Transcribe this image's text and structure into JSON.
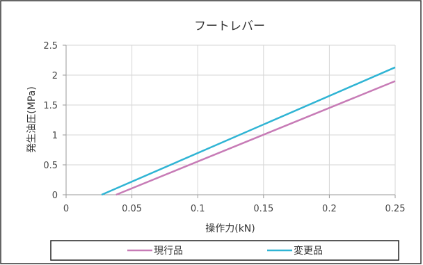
{
  "chart_data": {
    "type": "line",
    "title": "フートレバー",
    "xlabel": "操作力(kN)",
    "ylabel": "発生油圧(MPa)",
    "xlim": [
      0,
      0.25
    ],
    "ylim": [
      0,
      2.5
    ],
    "x_ticks": [
      0,
      0.05,
      0.1,
      0.15,
      0.2,
      0.25
    ],
    "x_tick_labels": [
      "0",
      "0.05",
      "0.1",
      "0.15",
      "0.2",
      "0.25"
    ],
    "y_ticks": [
      0,
      0.5,
      1,
      1.5,
      2,
      2.5
    ],
    "y_tick_labels": [
      "0",
      "0.5",
      "1",
      "1.5",
      "2",
      "2.5"
    ],
    "grid": true,
    "legend_position": "bottom",
    "series": [
      {
        "name": "現行品",
        "color": "#c77bb6",
        "x": [
          0.038,
          0.25
        ],
        "y": [
          0,
          1.9
        ]
      },
      {
        "name": "変更品",
        "color": "#2fb4d4",
        "x": [
          0.027,
          0.25
        ],
        "y": [
          0,
          2.13
        ]
      }
    ]
  },
  "colors": {
    "frame": "#222222",
    "grid": "#d6d6d6",
    "axis": "#9a9a9a",
    "text": "#444444"
  }
}
